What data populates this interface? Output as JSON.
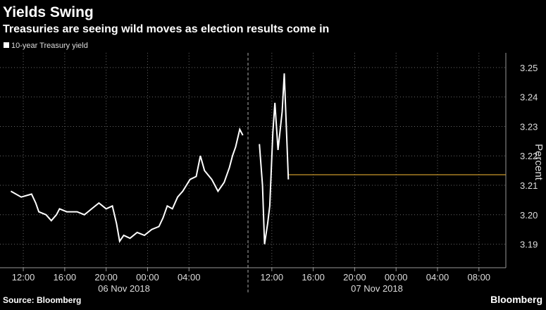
{
  "chart_data": {
    "type": "line",
    "title": "Yields Swing",
    "subtitle": "Treasuries are seeing wild moves as election results come in",
    "source": "Source: Bloomberg",
    "brand": "Bloomberg",
    "y_axis_label": "Percent",
    "date_labels": [
      "06 Nov 2018",
      "07 Nov 2018"
    ],
    "x": [
      10.8,
      11.8,
      12.8,
      13.2,
      13.5,
      14.2,
      14.7,
      15.2,
      15.5,
      16.2,
      17.2,
      17.9,
      18.6,
      19.3,
      20.0,
      20.6,
      21.0,
      21.3,
      21.7,
      22.3,
      23.0,
      23.7,
      24.4,
      25.1,
      25.5,
      25.9,
      26.4,
      26.9,
      27.4,
      28.1,
      28.7,
      29.1,
      29.5,
      30.2,
      30.5,
      30.8,
      31.4,
      31.9,
      32.2,
      32.5,
      32.9,
      33.2,
      33.7,
      34.8,
      35.1,
      35.3,
      35.6,
      35.8,
      36.1,
      36.3,
      36.6,
      37.0,
      37.2,
      37.4,
      37.6
    ],
    "series": [
      {
        "name": "10-year Treasury yield",
        "color": "#ffffff",
        "values": [
          3.208,
          3.206,
          3.207,
          3.204,
          3.201,
          3.2,
          3.198,
          3.2,
          3.202,
          3.201,
          3.201,
          3.2,
          3.202,
          3.204,
          3.202,
          3.203,
          3.197,
          3.191,
          3.193,
          3.192,
          3.194,
          3.193,
          3.195,
          3.196,
          3.199,
          3.203,
          3.202,
          3.206,
          3.208,
          3.212,
          3.213,
          3.22,
          3.215,
          3.212,
          3.21,
          3.208,
          3.211,
          3.216,
          3.22,
          3.223,
          3.229,
          3.227,
          null,
          3.224,
          3.21,
          3.19,
          3.197,
          3.203,
          3.228,
          3.238,
          3.222,
          3.235,
          3.248,
          3.23,
          3.212
        ]
      }
    ],
    "reference_line": {
      "value": 3.2136,
      "color": "#c8962a"
    },
    "xlim": [
      9.75,
      58.6
    ],
    "xticks": [
      {
        "value": 12,
        "label": "12:00"
      },
      {
        "value": 16,
        "label": "16:00"
      },
      {
        "value": 20,
        "label": "20:00"
      },
      {
        "value": 24,
        "label": "00:00"
      },
      {
        "value": 28,
        "label": "04:00"
      },
      {
        "value": 36,
        "label": "12:00"
      },
      {
        "value": 40,
        "label": "16:00"
      },
      {
        "value": 44,
        "label": "20:00"
      },
      {
        "value": 48,
        "label": "00:00"
      },
      {
        "value": 52,
        "label": "04:00"
      },
      {
        "value": 56,
        "label": "08:00"
      }
    ],
    "ylim": [
      3.182,
      3.255
    ],
    "yticks": [
      {
        "value": 3.19,
        "label": "3.19"
      },
      {
        "value": 3.2,
        "label": "3.20"
      },
      {
        "value": 3.21,
        "label": "3.21"
      },
      {
        "value": 3.22,
        "label": "3.22"
      },
      {
        "value": 3.23,
        "label": "3.23"
      },
      {
        "value": 3.24,
        "label": "3.24"
      },
      {
        "value": 3.25,
        "label": "3.25"
      }
    ],
    "grid": true
  }
}
